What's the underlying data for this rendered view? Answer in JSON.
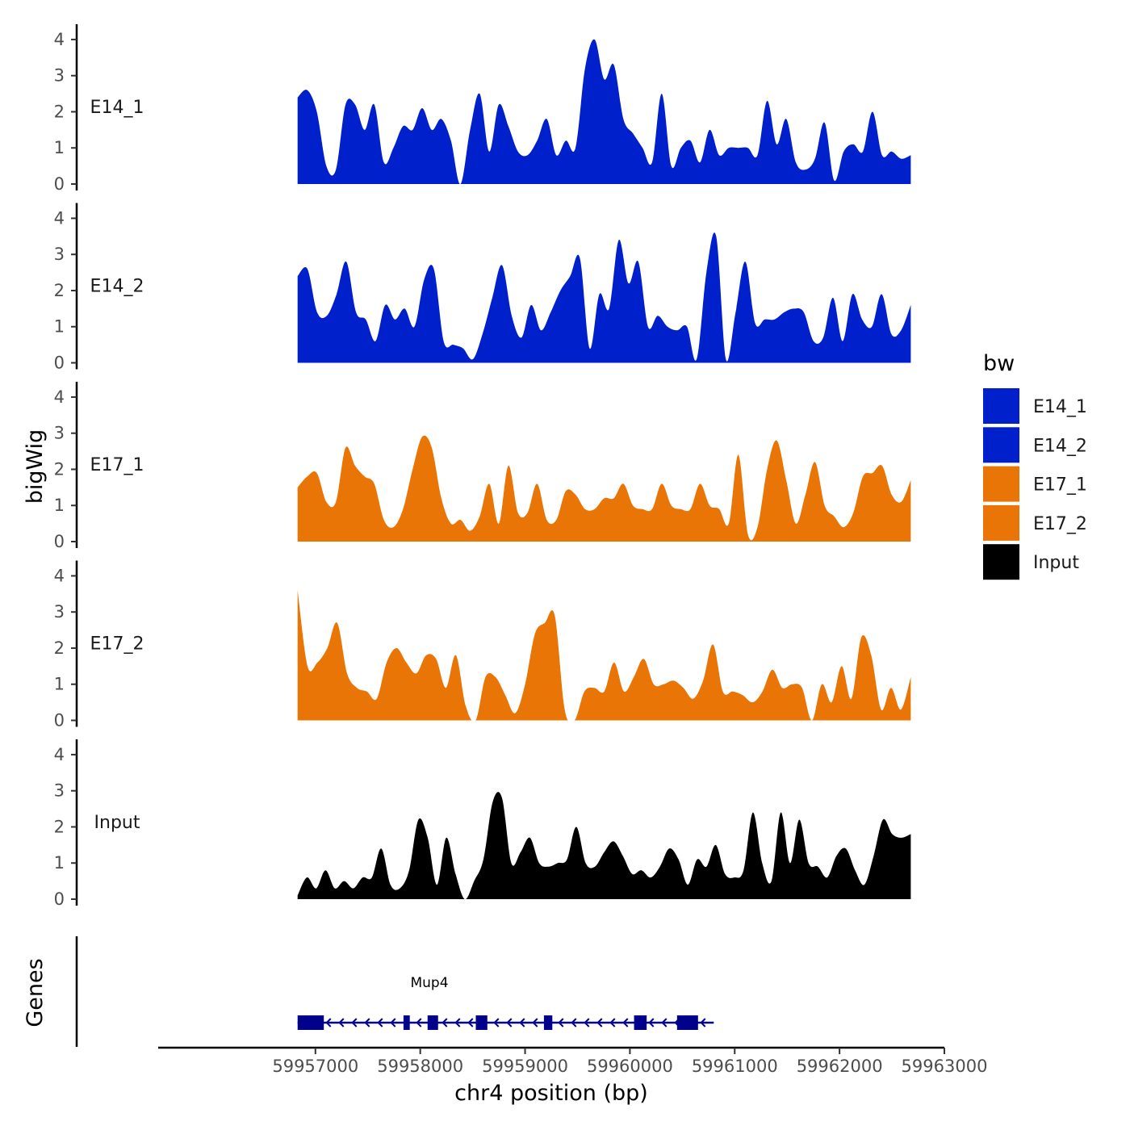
{
  "chart_data": {
    "type": "area",
    "title": "",
    "xlabel": "chr4 position (bp)",
    "ylabel": "bigWig",
    "genes_label": "Genes",
    "xlim": [
      59955500,
      59963000
    ],
    "data_range": [
      59956830,
      59962680
    ],
    "xticks": [
      59957000,
      59958000,
      59959000,
      59960000,
      59961000,
      59962000,
      59963000
    ],
    "xtick_labels": [
      "59957000",
      "59958000",
      "59959000",
      "59960000",
      "59961000",
      "59962000",
      "59963000"
    ],
    "ylim": [
      0,
      4.2
    ],
    "yticks": [
      0,
      1,
      2,
      3,
      4
    ],
    "ytick_labels": [
      "0",
      "1",
      "2",
      "3",
      "4"
    ],
    "legend": {
      "title": "bw",
      "position": "right",
      "entries": [
        {
          "name": "E14_1",
          "color": "#0020CC"
        },
        {
          "name": "E14_2",
          "color": "#0020CC"
        },
        {
          "name": "E17_1",
          "color": "#E87505"
        },
        {
          "name": "E17_2",
          "color": "#E87505"
        },
        {
          "name": "Input",
          "color": "#000000"
        }
      ]
    },
    "series": [
      {
        "name": "E14_1",
        "color": "#0020CC",
        "values": [
          2.4,
          2.6,
          2.0,
          0.5,
          0.4,
          2.2,
          2.2,
          1.5,
          2.2,
          0.6,
          1.0,
          1.6,
          1.5,
          2.1,
          1.5,
          1.8,
          1.2,
          0.0,
          1.5,
          2.5,
          0.9,
          2.2,
          1.6,
          0.9,
          0.8,
          1.2,
          1.8,
          0.8,
          1.2,
          1.0,
          3.2,
          4.0,
          2.9,
          3.3,
          1.8,
          1.4,
          1.0,
          0.6,
          2.5,
          0.5,
          1.0,
          1.2,
          0.6,
          1.5,
          0.8,
          1.0,
          1.0,
          1.0,
          0.8,
          2.3,
          1.1,
          1.8,
          0.6,
          0.4,
          0.7,
          1.7,
          0.1,
          0.9,
          1.1,
          0.9,
          2.0,
          0.8,
          0.9,
          0.7,
          0.8
        ]
      },
      {
        "name": "E14_2",
        "color": "#0020CC",
        "values": [
          2.4,
          2.6,
          1.4,
          1.3,
          1.9,
          2.8,
          1.4,
          1.2,
          0.6,
          1.6,
          1.2,
          1.5,
          1.0,
          2.3,
          2.6,
          0.6,
          0.5,
          0.4,
          0.1,
          0.8,
          1.8,
          2.7,
          1.3,
          0.7,
          1.6,
          0.9,
          1.4,
          2.0,
          2.4,
          2.9,
          0.4,
          1.9,
          1.5,
          3.4,
          2.2,
          2.8,
          1.0,
          1.3,
          1.0,
          0.9,
          1.0,
          0.1,
          2.5,
          3.5,
          0.1,
          1.4,
          2.8,
          1.1,
          1.2,
          1.2,
          1.4,
          1.5,
          1.4,
          0.6,
          0.7,
          1.8,
          0.6,
          1.9,
          1.2,
          1.0,
          1.9,
          0.8,
          0.9,
          1.6
        ]
      },
      {
        "name": "E17_1",
        "color": "#E87505",
        "values": [
          1.5,
          1.8,
          1.9,
          1.1,
          1.1,
          2.6,
          2.1,
          1.8,
          1.6,
          0.6,
          0.4,
          0.9,
          2.0,
          2.9,
          2.6,
          1.2,
          0.5,
          0.6,
          0.3,
          0.7,
          1.6,
          0.5,
          2.1,
          0.8,
          0.8,
          1.6,
          0.6,
          0.6,
          1.4,
          1.3,
          0.9,
          0.9,
          1.2,
          1.2,
          1.6,
          1.0,
          0.9,
          0.9,
          1.6,
          1.0,
          0.9,
          0.9,
          1.6,
          1.0,
          0.9,
          0.5,
          2.4,
          0.2,
          0.4,
          2.0,
          2.8,
          1.7,
          0.5,
          1.3,
          2.2,
          1.0,
          0.7,
          0.4,
          0.8,
          1.8,
          1.9,
          2.1,
          1.3,
          1.1,
          1.7
        ]
      },
      {
        "name": "E17_2",
        "color": "#E87505",
        "values": [
          3.6,
          1.5,
          1.6,
          2.0,
          2.7,
          1.3,
          0.9,
          0.8,
          0.6,
          1.6,
          2.0,
          1.6,
          1.3,
          1.8,
          1.7,
          0.9,
          1.8,
          0.4,
          0.0,
          1.2,
          1.2,
          0.7,
          0.2,
          1.0,
          2.4,
          2.7,
          2.9,
          0.3,
          0.0,
          0.8,
          0.9,
          0.8,
          1.6,
          0.8,
          1.2,
          1.7,
          1.0,
          1.0,
          1.1,
          0.9,
          0.6,
          1.1,
          2.1,
          0.8,
          0.8,
          0.7,
          0.5,
          0.8,
          1.4,
          0.9,
          1.0,
          0.9,
          0.0,
          1.0,
          0.5,
          1.5,
          0.6,
          2.3,
          1.8,
          0.3,
          0.9,
          0.3,
          1.2
        ]
      },
      {
        "name": "Input",
        "color": "#000000",
        "values": [
          0.1,
          0.6,
          0.3,
          0.8,
          0.3,
          0.5,
          0.3,
          0.6,
          0.6,
          1.4,
          0.4,
          0.3,
          0.8,
          2.2,
          1.7,
          0.4,
          1.7,
          0.7,
          0.0,
          0.5,
          1.1,
          2.7,
          2.8,
          1.0,
          1.3,
          1.7,
          1.0,
          0.9,
          1.0,
          1.1,
          2.0,
          1.0,
          0.9,
          1.3,
          1.6,
          1.2,
          0.7,
          0.8,
          0.6,
          0.9,
          1.4,
          1.1,
          0.4,
          1.1,
          0.9,
          1.5,
          0.7,
          0.6,
          0.8,
          2.4,
          1.0,
          0.5,
          2.4,
          1.0,
          2.2,
          1.0,
          0.9,
          0.6,
          1.2,
          1.4,
          0.8,
          0.4,
          1.2,
          2.2,
          1.8,
          1.7,
          1.8
        ]
      }
    ],
    "genes": [
      {
        "name": "Mup4",
        "start": 59956830,
        "end": 59960800,
        "strand": "-",
        "exons": [
          [
            59956830,
            59957080
          ],
          [
            59957840,
            59957900
          ],
          [
            59958070,
            59958170
          ],
          [
            59958530,
            59958640
          ],
          [
            59959180,
            59959260
          ],
          [
            59960040,
            59960160
          ],
          [
            59960450,
            59960650
          ]
        ]
      }
    ]
  }
}
